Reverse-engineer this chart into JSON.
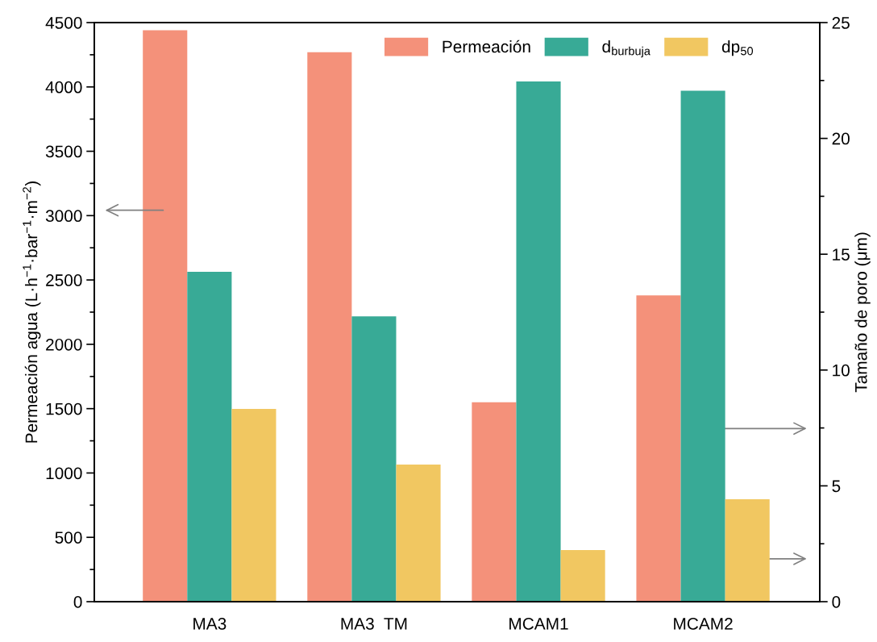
{
  "chart_data": {
    "type": "bar",
    "categories": [
      "MA3",
      "MA3  TM",
      "MCAM1",
      "MCAM2"
    ],
    "ylabel": "Permeación agua (L·h$^{−1}$·bar$^{−1}$·m$^{−2}$)",
    "y2label": "Tamaño de poro (μm)",
    "ylim": [
      0,
      4500
    ],
    "yticks": [
      0,
      500,
      1000,
      1500,
      2000,
      2500,
      3000,
      3500,
      4000,
      4500
    ],
    "y2lim": [
      0,
      25
    ],
    "y2ticks": [
      0,
      5,
      10,
      15,
      20,
      25
    ],
    "series": [
      {
        "name": "Permeación",
        "color": "#f4917a",
        "values": [
          4440,
          4270,
          1550,
          2380
        ]
      },
      {
        "name": "d$_{burbuja}$",
        "color": "#38aa96",
        "axis": "y2",
        "values": [
          14.24,
          12.32,
          22.46,
          22.06
        ]
      },
      {
        "name": "dp$_{50}$",
        "color": "#f1c761",
        "axis": "y2",
        "values": [
          8.32,
          5.92,
          2.23,
          4.42
        ]
      }
    ],
    "legend": "top right",
    "grid": false
  }
}
